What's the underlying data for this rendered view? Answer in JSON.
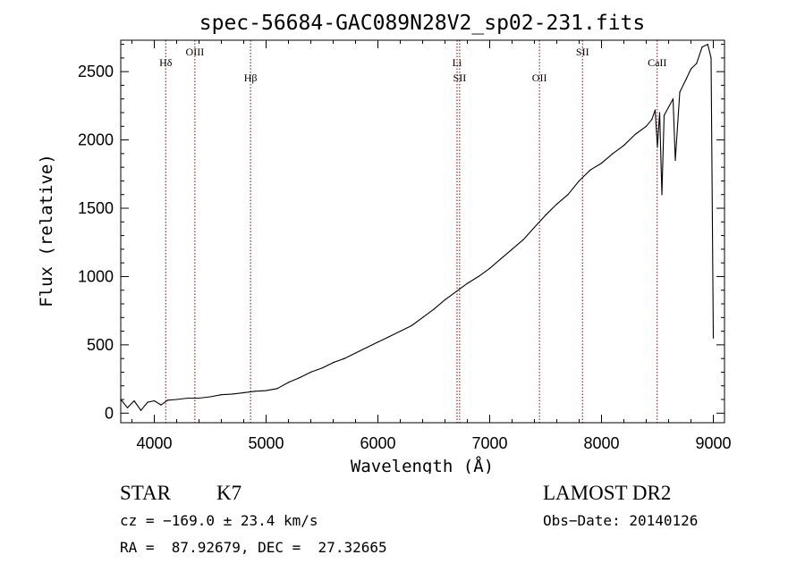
{
  "chart_data": {
    "type": "line",
    "title": "spec-56684-GAC089N28V2_sp02-231.fits",
    "xlabel": "Wavelength (Å)",
    "ylabel": "Flux (relative)",
    "xlim": [
      3700,
      9100
    ],
    "ylim": [
      -70,
      2730
    ],
    "xticks": [
      4000,
      5000,
      6000,
      7000,
      8000,
      9000
    ],
    "yticks": [
      0,
      500,
      1000,
      1500,
      2000,
      2500
    ],
    "grid": false,
    "legend": "none",
    "line_color": "#000000",
    "marker_color": "#8b0000",
    "series": [
      {
        "x": [
          3700,
          3760,
          3820,
          3880,
          3940,
          4000,
          4060,
          4120,
          4200,
          4300,
          4400,
          4500,
          4600,
          4700,
          4800,
          4900,
          5000,
          5100,
          5200,
          5300,
          5400,
          5500,
          5600,
          5700,
          5800,
          5900,
          6000,
          6100,
          6200,
          6300,
          6400,
          6500,
          6600,
          6700,
          6800,
          6900,
          7000,
          7100,
          7200,
          7300,
          7400,
          7500,
          7600,
          7700,
          7800,
          7900,
          8000,
          8100,
          8200,
          8300,
          8400,
          8450,
          8480,
          8500,
          8520,
          8540,
          8560,
          8600,
          8640,
          8660,
          8700,
          8760,
          8800,
          8850,
          8900,
          8950,
          8980,
          9000
        ],
        "y": [
          100,
          40,
          90,
          20,
          80,
          90,
          60,
          95,
          100,
          110,
          110,
          120,
          135,
          140,
          150,
          160,
          165,
          180,
          225,
          260,
          300,
          330,
          370,
          400,
          440,
          480,
          520,
          560,
          600,
          640,
          700,
          760,
          830,
          890,
          950,
          1000,
          1060,
          1130,
          1200,
          1270,
          1360,
          1450,
          1530,
          1600,
          1700,
          1780,
          1830,
          1900,
          1960,
          2040,
          2100,
          2150,
          2220,
          1950,
          2200,
          1600,
          2180,
          2240,
          2300,
          1850,
          2350,
          2450,
          2520,
          2560,
          2680,
          2700,
          2600,
          550
        ]
      }
    ],
    "lines": [
      {
        "label": "Hδ",
        "x": 4102,
        "label_y": 2540
      },
      {
        "label": "OIII",
        "x": 4363,
        "label_y": 2620
      },
      {
        "label": "Hβ",
        "x": 4861,
        "label_y": 2430
      },
      {
        "label": "Li",
        "x": 6708,
        "label_y": 2540
      },
      {
        "label": "SII",
        "x": 6731,
        "label_y": 2430
      },
      {
        "label": "OII",
        "x": 7445,
        "label_y": 2430
      },
      {
        "label": "SII",
        "x": 7830,
        "label_y": 2620
      },
      {
        "label": "CaII",
        "x": 8498,
        "label_y": 2540
      }
    ]
  },
  "info": {
    "class_label": "STAR",
    "subclass_label": "K7",
    "survey": "LAMOST DR2",
    "cz": "cz = −169.0 ± 23.4 km/s",
    "obs_date": "Obs−Date: 20140126",
    "radec": "RA =  87.92679, DEC =  27.32665"
  }
}
